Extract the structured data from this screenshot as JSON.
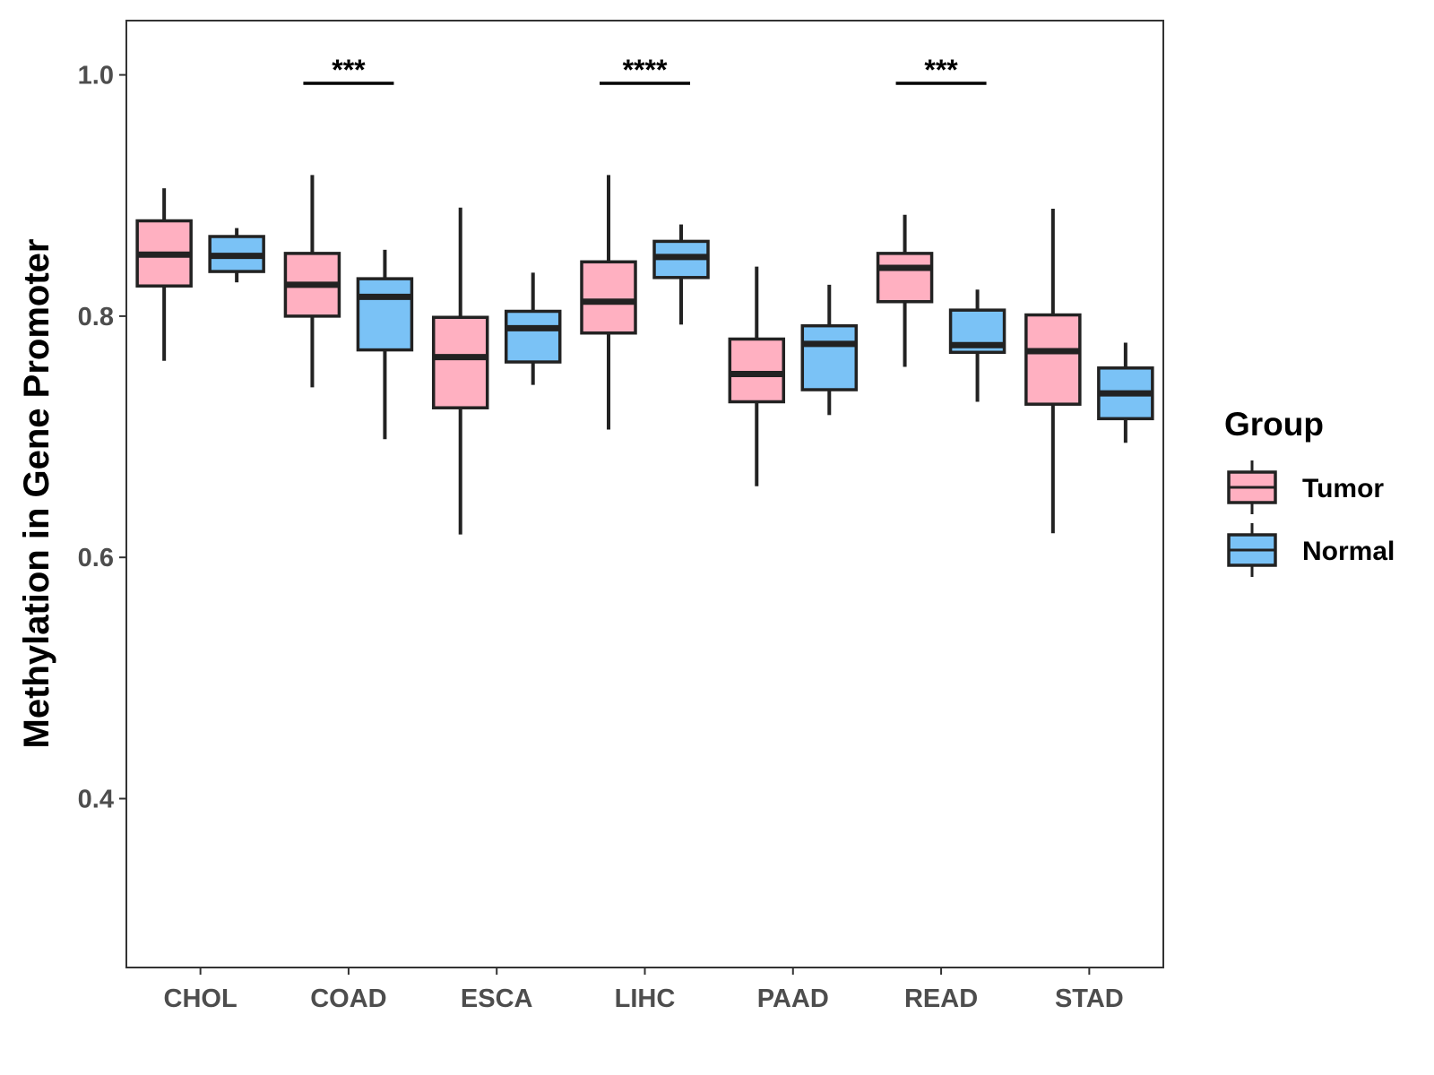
{
  "chart_data": {
    "type": "boxplot",
    "ylabel": "Methylation in Gene Promoter",
    "xlabel": "",
    "ylim": [
      0.26,
      1.045
    ],
    "yticks": [
      0.4,
      0.6,
      0.8,
      1.0
    ],
    "ytick_labels": [
      "0.4",
      "0.6",
      "0.8",
      "1.0"
    ],
    "categories": [
      "CHOL",
      "COAD",
      "ESCA",
      "LIHC",
      "PAAD",
      "READ",
      "STAD"
    ],
    "legend": {
      "title": "Group",
      "position": "right",
      "entries": [
        {
          "name": "Tumor",
          "color": "#ffb0c1"
        },
        {
          "name": "Normal",
          "color": "#7ac2f6"
        }
      ]
    },
    "series": [
      {
        "name": "Tumor",
        "color": "#ffb0c1",
        "boxes": [
          {
            "category": "CHOL",
            "lower_whisker": 0.763,
            "q1": 0.825,
            "median": 0.851,
            "q3": 0.879,
            "upper_whisker": 0.906
          },
          {
            "category": "COAD",
            "lower_whisker": 0.741,
            "q1": 0.8,
            "median": 0.826,
            "q3": 0.852,
            "upper_whisker": 0.917
          },
          {
            "category": "ESCA",
            "lower_whisker": 0.619,
            "q1": 0.724,
            "median": 0.766,
            "q3": 0.799,
            "upper_whisker": 0.89
          },
          {
            "category": "LIHC",
            "lower_whisker": 0.706,
            "q1": 0.786,
            "median": 0.812,
            "q3": 0.845,
            "upper_whisker": 0.917
          },
          {
            "category": "PAAD",
            "lower_whisker": 0.659,
            "q1": 0.729,
            "median": 0.752,
            "q3": 0.781,
            "upper_whisker": 0.841
          },
          {
            "category": "READ",
            "lower_whisker": 0.758,
            "q1": 0.812,
            "median": 0.84,
            "q3": 0.852,
            "upper_whisker": 0.884
          },
          {
            "category": "STAD",
            "lower_whisker": 0.62,
            "q1": 0.727,
            "median": 0.771,
            "q3": 0.801,
            "upper_whisker": 0.889
          }
        ]
      },
      {
        "name": "Normal",
        "color": "#7ac2f6",
        "boxes": [
          {
            "category": "CHOL",
            "lower_whisker": 0.828,
            "q1": 0.837,
            "median": 0.85,
            "q3": 0.866,
            "upper_whisker": 0.873
          },
          {
            "category": "COAD",
            "lower_whisker": 0.698,
            "q1": 0.772,
            "median": 0.816,
            "q3": 0.831,
            "upper_whisker": 0.855
          },
          {
            "category": "ESCA",
            "lower_whisker": 0.743,
            "q1": 0.762,
            "median": 0.79,
            "q3": 0.804,
            "upper_whisker": 0.836
          },
          {
            "category": "LIHC",
            "lower_whisker": 0.793,
            "q1": 0.832,
            "median": 0.849,
            "q3": 0.862,
            "upper_whisker": 0.876
          },
          {
            "category": "PAAD",
            "lower_whisker": 0.718,
            "q1": 0.739,
            "median": 0.777,
            "q3": 0.792,
            "upper_whisker": 0.826
          },
          {
            "category": "READ",
            "lower_whisker": 0.729,
            "q1": 0.77,
            "median": 0.776,
            "q3": 0.805,
            "upper_whisker": 0.822
          },
          {
            "category": "STAD",
            "lower_whisker": 0.695,
            "q1": 0.715,
            "median": 0.736,
            "q3": 0.757,
            "upper_whisker": 0.778
          }
        ]
      }
    ],
    "significance": [
      {
        "category": "COAD",
        "label": "***",
        "y": 0.993
      },
      {
        "category": "LIHC",
        "label": "****",
        "y": 0.993
      },
      {
        "category": "READ",
        "label": "***",
        "y": 0.993
      }
    ]
  }
}
